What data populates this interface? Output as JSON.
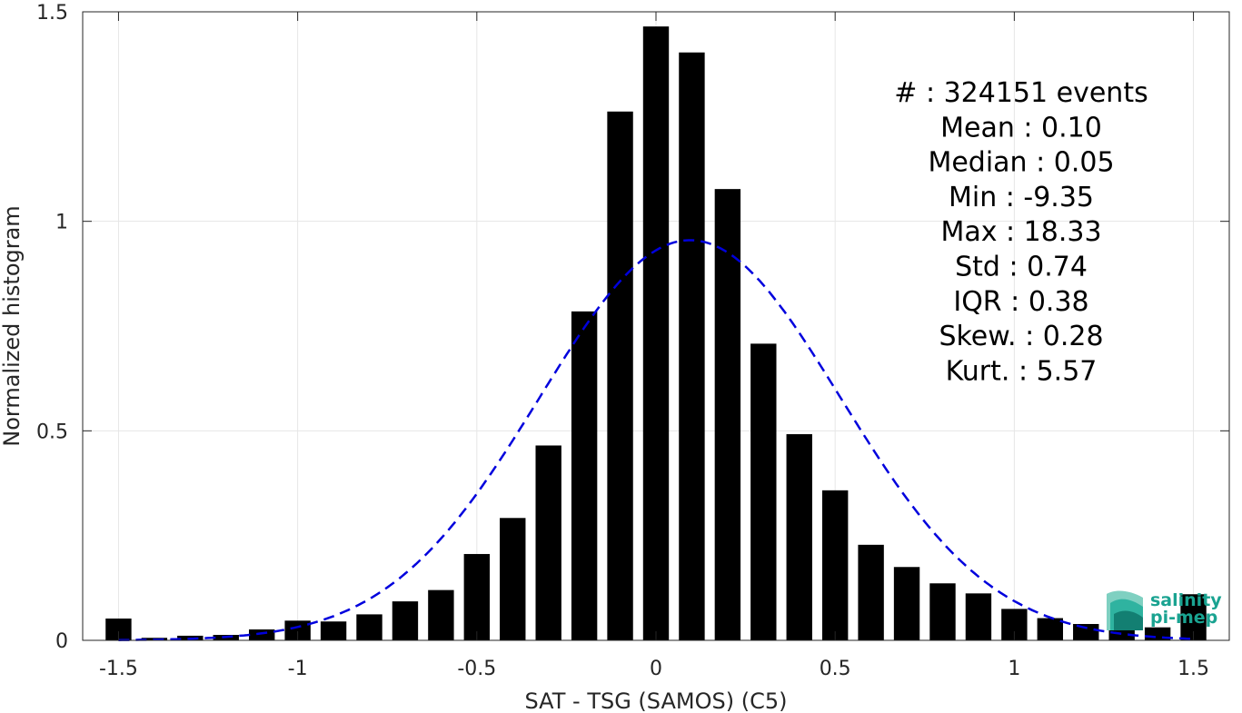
{
  "chart_data": {
    "type": "bar",
    "xlabel": "SAT - TSG (SAMOS) (C5)",
    "ylabel": "Normalized histogram",
    "xlim": [
      -1.6,
      1.6
    ],
    "ylim": [
      0,
      1.5
    ],
    "xticks": [
      -1.5,
      -1,
      -0.5,
      0,
      0.5,
      1,
      1.5
    ],
    "xtick_labels": [
      "-1.5",
      "-1",
      "-0.5",
      "0",
      "0.5",
      "1",
      "1.5"
    ],
    "yticks": [
      0,
      0.5,
      1,
      1.5
    ],
    "ytick_labels": [
      "0",
      "0.5",
      "1",
      "1.5"
    ],
    "grid": true,
    "bar_color": "#000000",
    "bin_width": 0.1,
    "x": [
      -1.5,
      -1.4,
      -1.3,
      -1.2,
      -1.1,
      -1.0,
      -0.9,
      -0.8,
      -0.7,
      -0.6,
      -0.5,
      -0.4,
      -0.3,
      -0.2,
      -0.1,
      0.0,
      0.1,
      0.2,
      0.3,
      0.4,
      0.5,
      0.6,
      0.7,
      0.8,
      0.9,
      1.0,
      1.1,
      1.2,
      1.3,
      1.4,
      1.5
    ],
    "values": [
      0.052,
      0.006,
      0.011,
      0.013,
      0.026,
      0.047,
      0.045,
      0.062,
      0.093,
      0.12,
      0.206,
      0.292,
      0.465,
      0.785,
      1.262,
      1.465,
      1.403,
      1.077,
      0.708,
      0.492,
      0.358,
      0.228,
      0.175,
      0.136,
      0.112,
      0.075,
      0.053,
      0.039,
      0.034,
      0.031,
      0.11
    ],
    "fit_curve": {
      "style": "dashed",
      "color": "#0000dd",
      "mean": 0.095,
      "std": 0.42,
      "peak": 0.955
    },
    "annotations": [
      "#  : 324151 events",
      "Mean : 0.10",
      "Median : 0.05",
      "Min : -9.35",
      "Max : 18.33",
      "Std : 0.74",
      "IQR : 0.38",
      "Skew. : 0.28",
      "Kurt. : 5.57"
    ]
  },
  "logo": {
    "line1": "salinity",
    "line2": "pi-mep",
    "color": "#1aa391"
  }
}
